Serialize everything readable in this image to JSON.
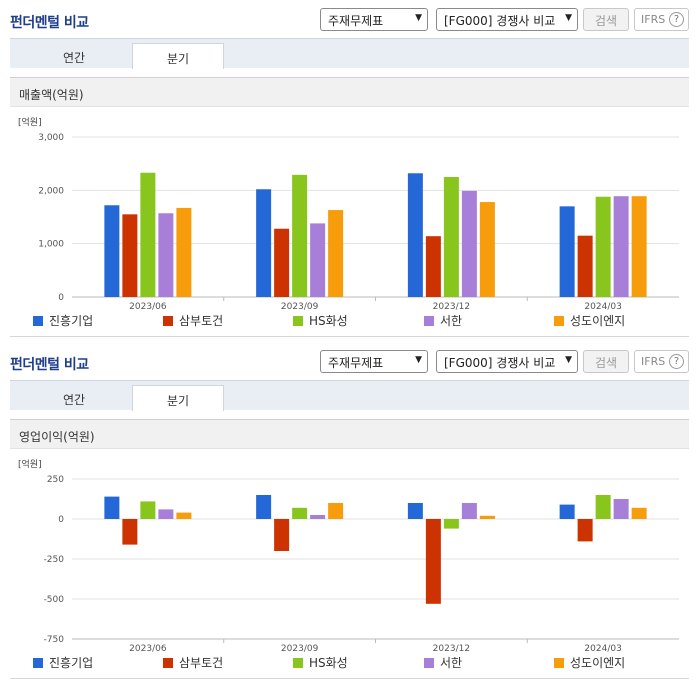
{
  "panels": [
    {
      "title": "펀더멘털 비교",
      "select_category": "주재무제표",
      "select_compare": "[FG000] 경쟁사 비교",
      "search_label": "검색",
      "ifrs_label": "IFRS",
      "tabs": [
        "연간",
        "분기"
      ],
      "active_tab": "분기",
      "metric_label": "매출액(억원)"
    },
    {
      "title": "펀더멘털 비교",
      "select_category": "주재무제표",
      "select_compare": "[FG000] 경쟁사 비교",
      "search_label": "검색",
      "ifrs_label": "IFRS",
      "tabs": [
        "연간",
        "분기"
      ],
      "active_tab": "분기",
      "metric_label": "영업이익(억원)"
    }
  ],
  "icons": {
    "help": "question-circle-icon",
    "dropdown": "chevron-down-icon"
  },
  "colors": {
    "진흥기업": "#2468d8",
    "삼부토건": "#cc3300",
    "HS화성": "#88c61e",
    "서한": "#a77fd8",
    "성도이엔지": "#f79c0a"
  },
  "chart_data": [
    {
      "type": "bar",
      "unit_label": "[억원]",
      "categories": [
        "2023/06",
        "2023/09",
        "2023/12",
        "2024/03"
      ],
      "ylim": [
        0,
        3000
      ],
      "yticks": [
        0,
        1000,
        2000,
        3000
      ],
      "ytick_labels": [
        "0",
        "1,000",
        "2,000",
        "3,000"
      ],
      "grid": true,
      "legend_position": "bottom",
      "series": [
        {
          "name": "진흥기업",
          "color": "#2468d8",
          "values": [
            1720,
            2020,
            2320,
            1700
          ]
        },
        {
          "name": "삼부토건",
          "color": "#cc3300",
          "values": [
            1550,
            1280,
            1140,
            1150
          ]
        },
        {
          "name": "HS화성",
          "color": "#88c61e",
          "values": [
            2330,
            2290,
            2250,
            1880
          ]
        },
        {
          "name": "서한",
          "color": "#a77fd8",
          "values": [
            1570,
            1380,
            1990,
            1890
          ]
        },
        {
          "name": "성도이엔지",
          "color": "#f79c0a",
          "values": [
            1670,
            1630,
            1780,
            1890
          ]
        }
      ]
    },
    {
      "type": "bar",
      "unit_label": "[억원]",
      "categories": [
        "2023/06",
        "2023/09",
        "2023/12",
        "2024/03"
      ],
      "ylim": [
        -750,
        250
      ],
      "yticks": [
        -750,
        -500,
        -250,
        0,
        250
      ],
      "ytick_labels": [
        "-750",
        "-500",
        "-250",
        "0",
        "250"
      ],
      "grid": true,
      "legend_position": "bottom",
      "series": [
        {
          "name": "진흥기업",
          "color": "#2468d8",
          "values": [
            140,
            150,
            100,
            90
          ]
        },
        {
          "name": "삼부토건",
          "color": "#cc3300",
          "values": [
            -160,
            -200,
            -530,
            -140
          ]
        },
        {
          "name": "HS화성",
          "color": "#88c61e",
          "values": [
            110,
            70,
            -60,
            150
          ]
        },
        {
          "name": "서한",
          "color": "#a77fd8",
          "values": [
            60,
            25,
            100,
            125
          ]
        },
        {
          "name": "성도이엔지",
          "color": "#f79c0a",
          "values": [
            40,
            100,
            20,
            70
          ]
        }
      ]
    }
  ]
}
